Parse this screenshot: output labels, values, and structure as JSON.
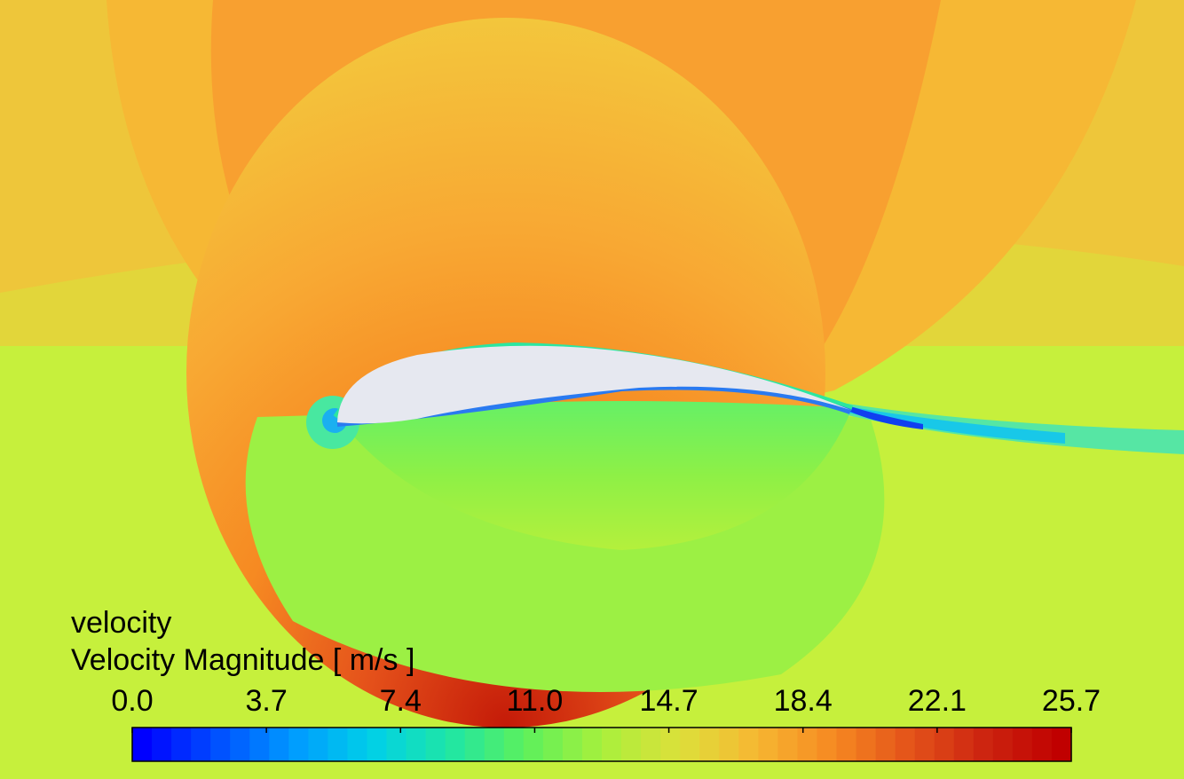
{
  "legend": {
    "variable": "velocity",
    "title": "Velocity Magnitude [ m/s ]",
    "min": 0.0,
    "max": 25.7,
    "ticks": [
      "0.0",
      "3.7",
      "7.4",
      "11.0",
      "14.7",
      "18.4",
      "22.1",
      "25.7"
    ],
    "colormap": [
      "#0000ff",
      "#0050ff",
      "#009cff",
      "#00d0e8",
      "#1ee6a6",
      "#5cf05c",
      "#a8f03c",
      "#dce03a",
      "#f6b832",
      "#f68a22",
      "#e4541a",
      "#cc2410",
      "#c00000"
    ]
  },
  "field": {
    "freestream_color": "#c6f03c",
    "airfoil_color": "#e6e8f0"
  }
}
